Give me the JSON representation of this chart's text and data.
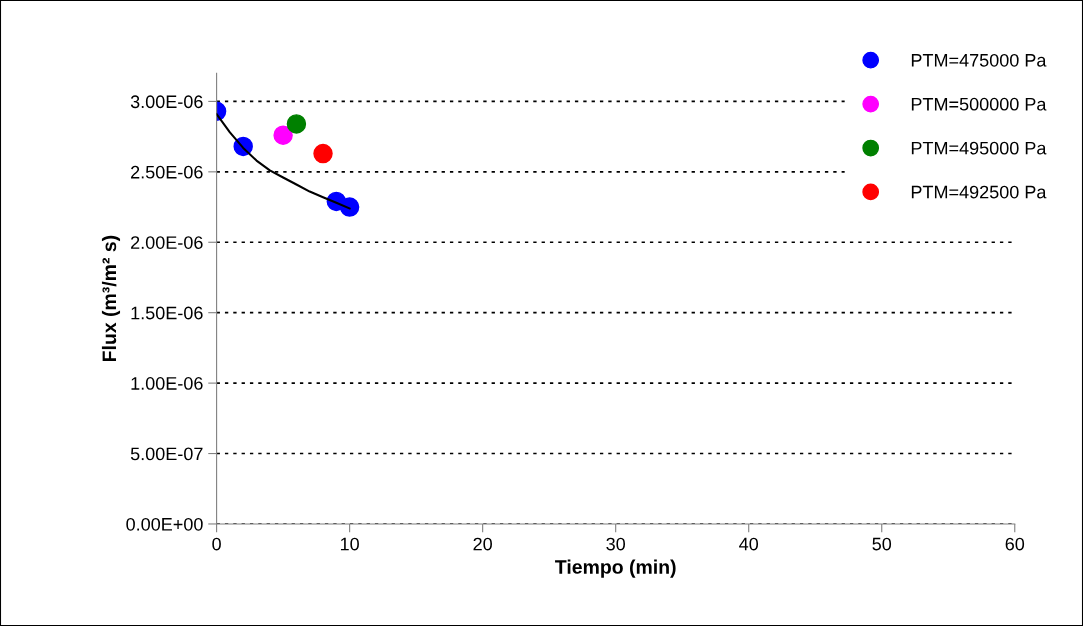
{
  "chart_data": {
    "type": "scatter",
    "xlabel": "Tiempo (min)",
    "ylabel": "Flux (m³/m² s)",
    "xlim": [
      0,
      60
    ],
    "xticks": [
      0,
      10,
      20,
      30,
      40,
      50,
      60
    ],
    "ylim": [
      0,
      3.2e-06
    ],
    "yticks": [
      {
        "value": 0,
        "label": "0.00E+00"
      },
      {
        "value": 5e-07,
        "label": "5.00E-07"
      },
      {
        "value": 1e-06,
        "label": "1.00E-06"
      },
      {
        "value": 1.5e-06,
        "label": "1.50E-06"
      },
      {
        "value": 2e-06,
        "label": "2.00E-06"
      },
      {
        "value": 2.5e-06,
        "label": "2.50E-06"
      },
      {
        "value": 3e-06,
        "label": "3.00E-06"
      }
    ],
    "grid": "y",
    "legend": "top right",
    "marker": "circle",
    "series": [
      {
        "type": "line",
        "color": "#000000",
        "marker": "none",
        "x": [
          0,
          1,
          2,
          3,
          4,
          5,
          6,
          7,
          8,
          9,
          10
        ],
        "values": [
          2.91e-06,
          2.78e-06,
          2.67e-06,
          2.58e-06,
          2.51e-06,
          2.46e-06,
          2.41e-06,
          2.36e-06,
          2.32e-06,
          2.28e-06,
          2.24e-06
        ]
      },
      {
        "name": "PTM=475000 Pa",
        "color": "#0000ff",
        "x": [
          0,
          2,
          9,
          10
        ],
        "values": [
          2.93e-06,
          2.68e-06,
          2.29e-06,
          2.25e-06
        ]
      },
      {
        "name": "PTM=500000 Pa",
        "color": "#ff00ff",
        "x": [
          5
        ],
        "values": [
          2.76e-06
        ]
      },
      {
        "name": "PTM=495000 Pa",
        "color": "#008000",
        "x": [
          6
        ],
        "values": [
          2.84e-06
        ]
      },
      {
        "name": "PTM=492500 Pa",
        "color": "#ff0000",
        "x": [
          8
        ],
        "values": [
          2.63e-06
        ]
      }
    ]
  }
}
